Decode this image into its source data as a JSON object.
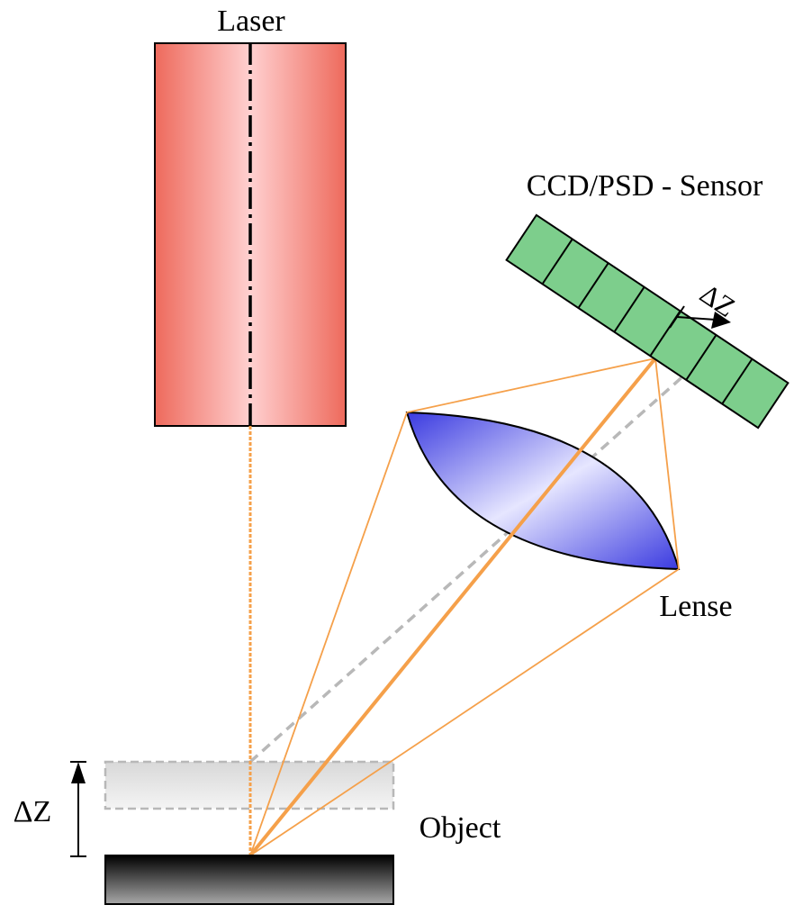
{
  "labels": {
    "laser": "Laser",
    "sensor": "CCD/PSD - Sensor",
    "lens": "Lense",
    "object": "Object",
    "delta_z_object": "ΔZ",
    "delta_z_sensor": "ΔZ"
  },
  "colors": {
    "laser_edge": "#ee6a5c",
    "laser_center": "#ffd0d0",
    "sensor_cell": "#7dce8c",
    "lens_edge": "#3a3ae0",
    "lens_center": "#e6e6ff",
    "beam": "#f5a04a",
    "reference_line": "#b8b8b8",
    "object_top": "#000000",
    "object_bottom": "#a8a8a8",
    "ghost_object": "#d8d8d8"
  },
  "icons": {
    "object_shift_arrow": "arrow-up-icon",
    "sensor_shift_arrow": "arrow-right-icon"
  }
}
